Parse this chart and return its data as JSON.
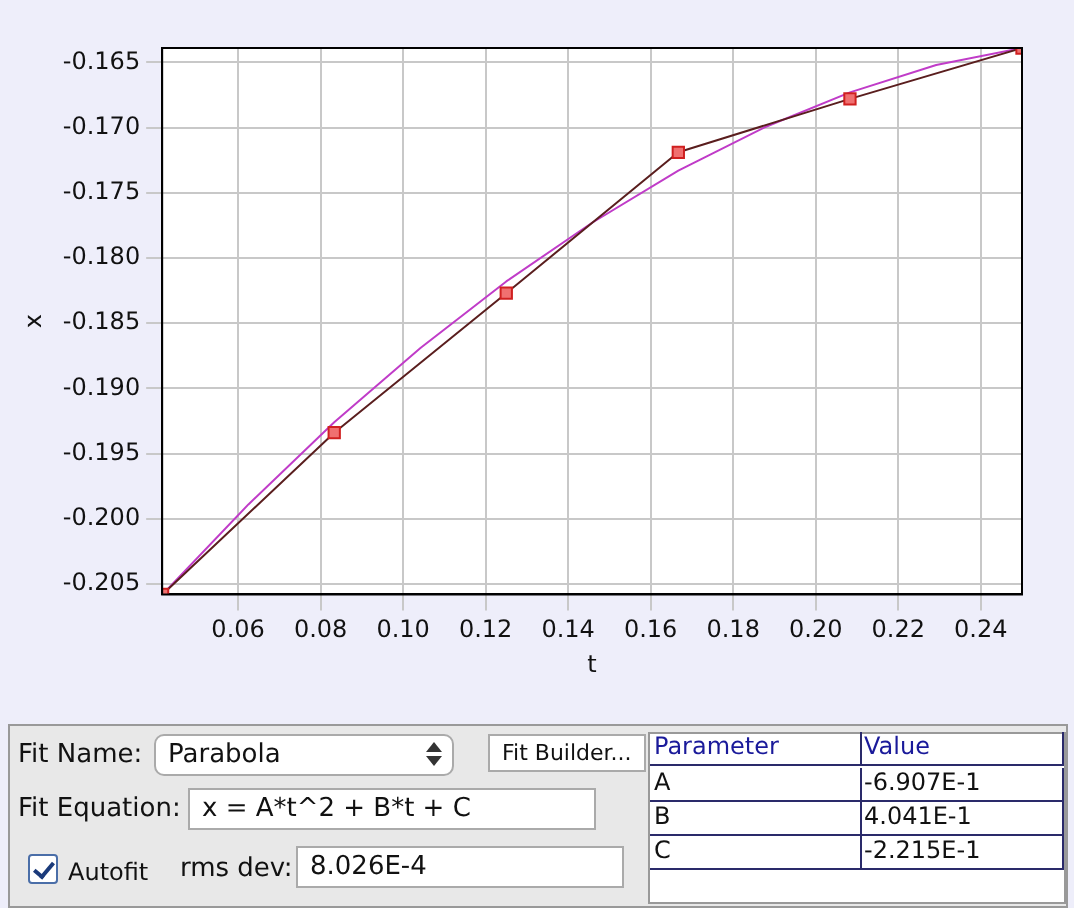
{
  "chart_data": {
    "type": "line",
    "xlabel": "t",
    "ylabel": "x",
    "xlim": [
      0.0416,
      0.25
    ],
    "ylim": [
      -0.2058,
      -0.1639
    ],
    "xticks": [
      0.06,
      0.08,
      {
        "value": 0.1,
        "label": "0.10"
      },
      0.12,
      0.14,
      0.16,
      0.18,
      {
        "value": 0.2,
        "label": "0.20"
      },
      0.22,
      0.24
    ],
    "yticks": [
      -0.205,
      {
        "value": -0.2,
        "label": "-0.200"
      },
      -0.195,
      {
        "value": -0.19,
        "label": "-0.190"
      },
      -0.185,
      {
        "value": -0.18,
        "label": "-0.180"
      },
      -0.175,
      {
        "value": -0.17,
        "label": "-0.170"
      },
      -0.165
    ],
    "series": [
      {
        "color": "#5a1e1e",
        "marker": "square",
        "x": [
          0.0417,
          0.0833,
          0.125,
          0.1667,
          0.2083,
          0.25
        ],
        "values": [
          -0.2058,
          -0.1934,
          -0.1827,
          -0.1719,
          -0.1678,
          -0.1639
        ]
      },
      {
        "color": "#c03cc8",
        "marker": "none",
        "x": [
          0.0417,
          0.0625,
          0.0833,
          0.1042,
          0.125,
          0.1458,
          0.1667,
          0.1875,
          0.2083,
          0.2292,
          0.25
        ],
        "values": [
          -0.2058,
          -0.1989,
          -0.1926,
          -0.1869,
          -0.1818,
          -0.1773,
          -0.1733,
          -0.17,
          -0.1673,
          -0.1652,
          -0.1639
        ]
      }
    ],
    "grid": true,
    "legend": false,
    "line_style": "solid",
    "annotations": [
      "Fit Name:",
      "Parabola",
      "Fit Builder...",
      "Fit Equation:",
      "x = A*t^2 + B*t + C",
      "Autofit",
      "rms dev:",
      "8.026E-4",
      "Parameter",
      "Value",
      "A",
      "-6.907E-1",
      "B",
      "4.041E-1",
      "C",
      "-2.215E-1"
    ]
  }
}
